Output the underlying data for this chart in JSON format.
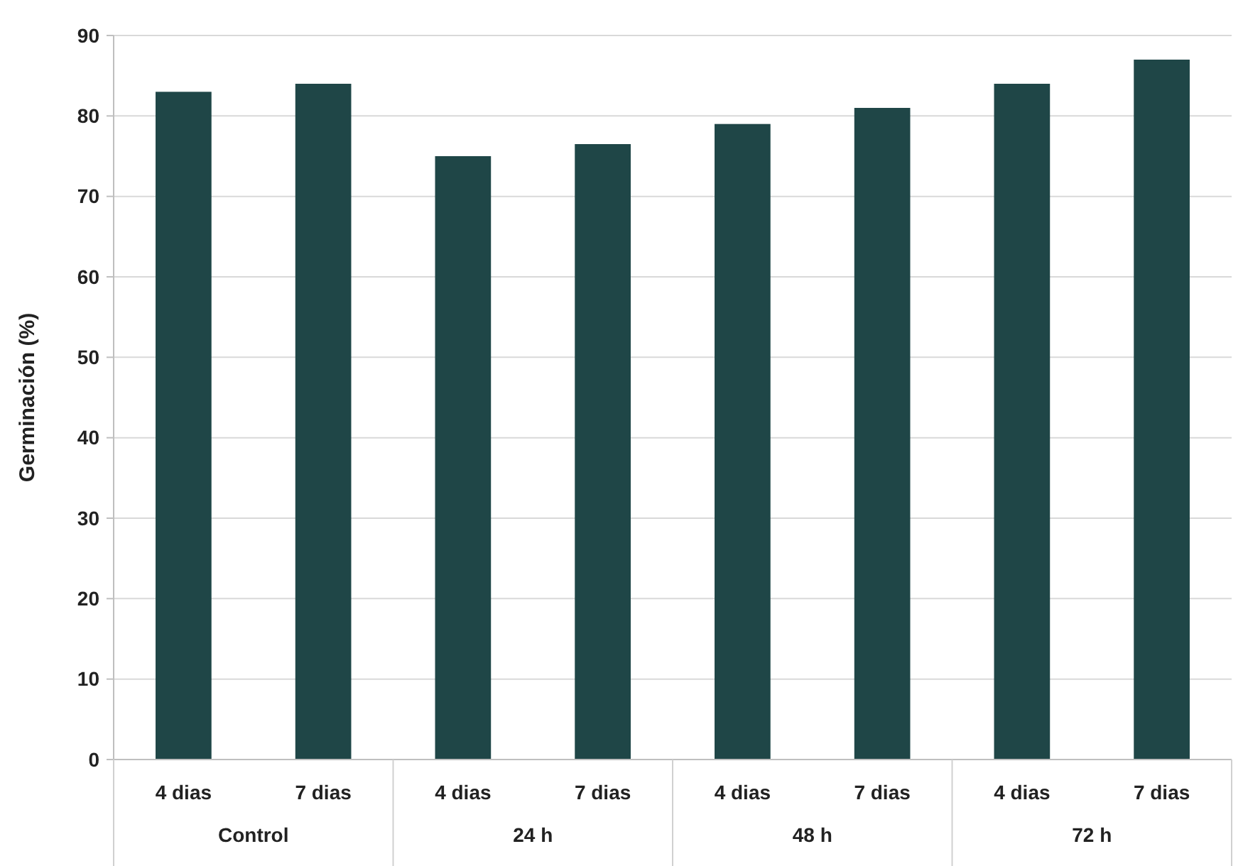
{
  "chart_data": {
    "type": "bar",
    "ylabel": "Germinación  (%)",
    "categories": [
      "4 dias",
      "7 dias",
      "4 dias",
      "7 dias",
      "4 dias",
      "7 dias",
      "4 dias",
      "7 dias"
    ],
    "values": [
      83,
      84,
      75,
      76.5,
      79,
      81,
      84,
      87
    ],
    "color": "#1f4647",
    "ylim": [
      0,
      90
    ],
    "yticks": [
      0,
      10,
      20,
      30,
      40,
      50,
      60,
      70,
      80,
      90
    ],
    "grid": "y",
    "annotations": [
      "Control",
      "24 h",
      "48 h",
      "72 h"
    ]
  }
}
